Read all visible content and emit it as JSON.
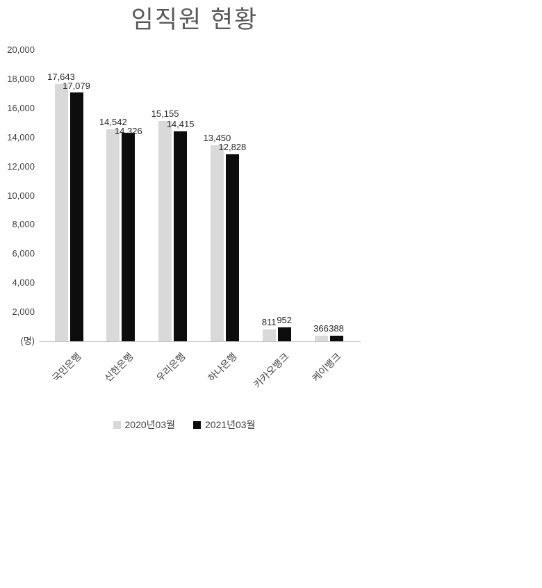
{
  "title": "임직원 현황",
  "y_axis_unit": "(명)",
  "chart_data": {
    "type": "bar",
    "title": "임직원 현황",
    "categories": [
      "국민은행",
      "신한은행",
      "우리은행",
      "하나은행",
      "카카오뱅크",
      "케이뱅크"
    ],
    "series": [
      {
        "name": "2020년03월",
        "color": "#d9d9d9",
        "values": [
          17643,
          14542,
          15155,
          13450,
          811,
          366
        ]
      },
      {
        "name": "2021년03월",
        "color": "#0d0d0d",
        "values": [
          17079,
          14326,
          14415,
          12828,
          952,
          388
        ]
      }
    ],
    "xlabel": "",
    "ylabel": "(명)",
    "ylim": [
      0,
      20000
    ],
    "ytick_interval": 2000,
    "grid": false,
    "legend_position": "bottom",
    "data_labels": true
  },
  "colors": {
    "title": "#595959",
    "axis_text": "#404040",
    "axis_line": "#c6c6c6",
    "series_2020": "#d9d9d9",
    "series_2021": "#0d0d0d"
  }
}
